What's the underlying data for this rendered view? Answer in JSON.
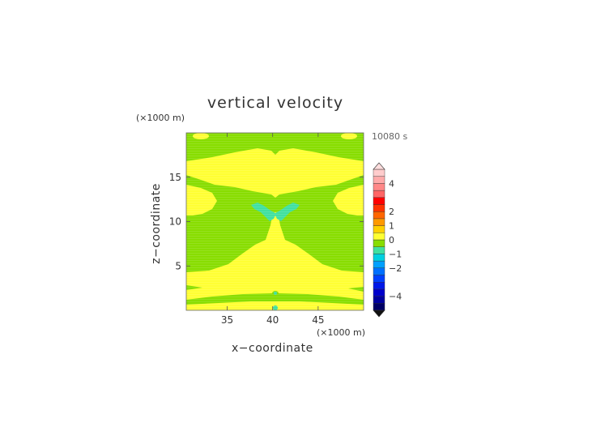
{
  "chart_data": {
    "type": "heatmap",
    "title": "vertical velocity",
    "xlabel": "x−coordinate",
    "ylabel": "z−coordinate",
    "x_unit": "(×1000 m)",
    "y_unit": "(×1000 m)",
    "time_label": "10080 s",
    "xlim": [
      30.5,
      50
    ],
    "ylim": [
      0,
      20
    ],
    "x_ticks": [
      35,
      40,
      45
    ],
    "y_ticks": [
      5,
      10,
      15
    ],
    "colorbar": {
      "levels": [
        -5,
        -4.5,
        -4,
        -3.5,
        -3,
        -2.5,
        -2,
        -1.5,
        -1,
        -0.5,
        0,
        0.5,
        1,
        1.5,
        2,
        2.5,
        3,
        3.5,
        4,
        4.5,
        5
      ],
      "tick_labels": [
        4,
        2,
        1,
        0,
        -1,
        -2,
        -4
      ],
      "colors": [
        "#000066",
        "#0000a0",
        "#0000cc",
        "#0018e8",
        "#0040ff",
        "#0070ff",
        "#00a0ff",
        "#00d0e0",
        "#40e0a0",
        "#88dd00",
        "#ffff33",
        "#ffd000",
        "#ff9900",
        "#ff6600",
        "#ff3300",
        "#ff0000",
        "#ff6666",
        "#ff8888",
        "#ffaaaa",
        "#ffcccc"
      ],
      "extend": "both"
    },
    "fields": {
      "background_color": "#88dd00",
      "positive_small_color": "#ffff33",
      "negative_small_color": "#40e0a0"
    }
  }
}
